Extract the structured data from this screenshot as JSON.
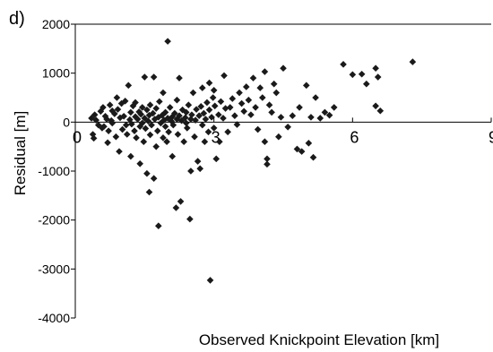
{
  "chart_data": {
    "type": "scatter",
    "panel_label": "d)",
    "title": "",
    "xlabel": "Observed Knickpoint Elevation [km]",
    "ylabel": "Residual [m]",
    "xlim": [
      0,
      9
    ],
    "ylim": [
      -4000,
      2000
    ],
    "x_ticks": [
      0,
      3,
      6,
      9
    ],
    "x_tick_labels": [
      "0",
      "3",
      "6",
      "9"
    ],
    "y_ticks": [
      -4000,
      -3000,
      -2000,
      -1000,
      0,
      1000,
      2000
    ],
    "y_tick_labels": [
      "-4000",
      "-3000",
      "-2000",
      "-1000",
      "0",
      "1000",
      "2000"
    ],
    "grid": false,
    "marker": "diamond",
    "marker_color": "#1a1a1a",
    "points": [
      [
        0.35,
        80
      ],
      [
        0.38,
        -250
      ],
      [
        0.4,
        -330
      ],
      [
        0.42,
        150
      ],
      [
        0.45,
        40
      ],
      [
        0.5,
        -60
      ],
      [
        0.55,
        220
      ],
      [
        0.58,
        -120
      ],
      [
        0.6,
        300
      ],
      [
        0.62,
        -90
      ],
      [
        0.65,
        120
      ],
      [
        0.68,
        60
      ],
      [
        0.7,
        -420
      ],
      [
        0.72,
        -180
      ],
      [
        0.75,
        350
      ],
      [
        0.78,
        30
      ],
      [
        0.8,
        -20
      ],
      [
        0.8,
        230
      ],
      [
        0.85,
        170
      ],
      [
        0.88,
        -300
      ],
      [
        0.9,
        500
      ],
      [
        0.92,
        260
      ],
      [
        0.95,
        -600
      ],
      [
        0.97,
        90
      ],
      [
        1.0,
        380
      ],
      [
        1.02,
        -150
      ],
      [
        1.05,
        120
      ],
      [
        1.08,
        430
      ],
      [
        1.1,
        -60
      ],
      [
        1.12,
        -250
      ],
      [
        1.15,
        750
      ],
      [
        1.18,
        50
      ],
      [
        1.2,
        200
      ],
      [
        1.2,
        -700
      ],
      [
        1.22,
        -40
      ],
      [
        1.25,
        330
      ],
      [
        1.28,
        -180
      ],
      [
        1.3,
        110
      ],
      [
        1.3,
        400
      ],
      [
        1.32,
        -320
      ],
      [
        1.35,
        60
      ],
      [
        1.38,
        210
      ],
      [
        1.4,
        -90
      ],
      [
        1.4,
        -850
      ],
      [
        1.42,
        160
      ],
      [
        1.45,
        300
      ],
      [
        1.45,
        -20
      ],
      [
        1.48,
        -400
      ],
      [
        1.5,
        80
      ],
      [
        1.5,
        920
      ],
      [
        1.52,
        -130
      ],
      [
        1.55,
        250
      ],
      [
        1.55,
        -1050
      ],
      [
        1.58,
        20
      ],
      [
        1.6,
        140
      ],
      [
        1.6,
        -1430
      ],
      [
        1.62,
        350
      ],
      [
        1.62,
        -260
      ],
      [
        1.65,
        -60
      ],
      [
        1.68,
        180
      ],
      [
        1.7,
        920
      ],
      [
        1.7,
        -1150
      ],
      [
        1.72,
        60
      ],
      [
        1.75,
        -500
      ],
      [
        1.75,
        280
      ],
      [
        1.78,
        -180
      ],
      [
        1.8,
        100
      ],
      [
        1.8,
        -2120
      ],
      [
        1.82,
        420
      ],
      [
        1.85,
        -20
      ],
      [
        1.88,
        140
      ],
      [
        1.9,
        -320
      ],
      [
        1.9,
        600
      ],
      [
        1.92,
        40
      ],
      [
        1.95,
        -90
      ],
      [
        1.95,
        200
      ],
      [
        1.98,
        -400
      ],
      [
        2.0,
        80
      ],
      [
        2.0,
        1650
      ],
      [
        2.02,
        -200
      ],
      [
        2.05,
        300
      ],
      [
        2.08,
        20
      ],
      [
        2.1,
        -700
      ],
      [
        2.1,
        110
      ],
      [
        2.12,
        -60
      ],
      [
        2.15,
        180
      ],
      [
        2.18,
        -1750
      ],
      [
        2.2,
        60
      ],
      [
        2.2,
        450
      ],
      [
        2.22,
        -250
      ],
      [
        2.25,
        130
      ],
      [
        2.25,
        900
      ],
      [
        2.28,
        -1620
      ],
      [
        2.3,
        30
      ],
      [
        2.32,
        250
      ],
      [
        2.35,
        -400
      ],
      [
        2.38,
        90
      ],
      [
        2.4,
        -20
      ],
      [
        2.4,
        200
      ],
      [
        2.42,
        -120
      ],
      [
        2.45,
        350
      ],
      [
        2.48,
        -1980
      ],
      [
        2.5,
        60
      ],
      [
        2.5,
        -1000
      ],
      [
        2.52,
        150
      ],
      [
        2.55,
        600
      ],
      [
        2.58,
        -300
      ],
      [
        2.6,
        40
      ],
      [
        2.62,
        260
      ],
      [
        2.65,
        -800
      ],
      [
        2.68,
        130
      ],
      [
        2.7,
        -950
      ],
      [
        2.72,
        320
      ],
      [
        2.75,
        -60
      ],
      [
        2.75,
        700
      ],
      [
        2.78,
        180
      ],
      [
        2.8,
        -400
      ],
      [
        2.82,
        60
      ],
      [
        2.85,
        400
      ],
      [
        2.88,
        -200
      ],
      [
        2.9,
        250
      ],
      [
        2.9,
        800
      ],
      [
        2.92,
        -3230
      ],
      [
        2.95,
        100
      ],
      [
        2.98,
        500
      ],
      [
        3.0,
        -120
      ],
      [
        3.0,
        650
      ],
      [
        3.02,
        330
      ],
      [
        3.05,
        -750
      ],
      [
        3.1,
        150
      ],
      [
        3.12,
        -400
      ],
      [
        3.15,
        420
      ],
      [
        3.2,
        80
      ],
      [
        3.22,
        950
      ],
      [
        3.25,
        280
      ],
      [
        3.3,
        -200
      ],
      [
        3.35,
        300
      ],
      [
        3.4,
        480
      ],
      [
        3.45,
        130
      ],
      [
        3.5,
        -50
      ],
      [
        3.55,
        600
      ],
      [
        3.6,
        380
      ],
      [
        3.65,
        220
      ],
      [
        3.7,
        720
      ],
      [
        3.75,
        450
      ],
      [
        3.8,
        150
      ],
      [
        3.85,
        900
      ],
      [
        3.9,
        300
      ],
      [
        3.95,
        -150
      ],
      [
        4.0,
        700
      ],
      [
        4.05,
        500
      ],
      [
        4.1,
        -400
      ],
      [
        4.1,
        1030
      ],
      [
        4.15,
        -750
      ],
      [
        4.15,
        -860
      ],
      [
        4.2,
        350
      ],
      [
        4.25,
        200
      ],
      [
        4.3,
        780
      ],
      [
        4.35,
        600
      ],
      [
        4.4,
        -300
      ],
      [
        4.45,
        100
      ],
      [
        4.5,
        1100
      ],
      [
        4.6,
        -100
      ],
      [
        4.7,
        130
      ],
      [
        4.8,
        -550
      ],
      [
        4.85,
        300
      ],
      [
        4.9,
        -600
      ],
      [
        5.0,
        750
      ],
      [
        5.05,
        -430
      ],
      [
        5.1,
        100
      ],
      [
        5.15,
        -720
      ],
      [
        5.2,
        500
      ],
      [
        5.3,
        80
      ],
      [
        5.4,
        200
      ],
      [
        5.5,
        140
      ],
      [
        5.6,
        300
      ],
      [
        5.8,
        1180
      ],
      [
        6.0,
        970
      ],
      [
        6.2,
        980
      ],
      [
        6.3,
        780
      ],
      [
        6.5,
        1100
      ],
      [
        6.5,
        330
      ],
      [
        6.55,
        920
      ],
      [
        6.6,
        230
      ],
      [
        7.3,
        1230
      ]
    ]
  }
}
